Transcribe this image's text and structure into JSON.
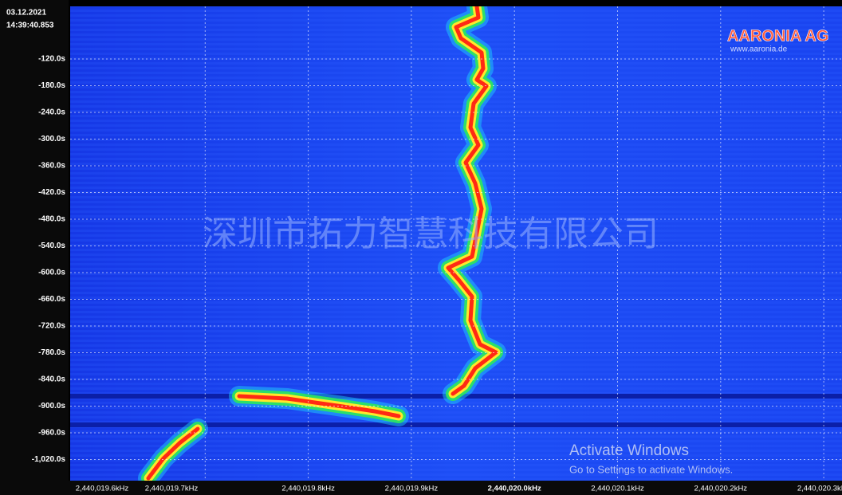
{
  "timestamp": {
    "date": "03.12.2021",
    "time": "14:39:40.853"
  },
  "y_axis": {
    "labels": [
      "-120.0s",
      "-180.0s",
      "-240.0s",
      "-300.0s",
      "-360.0s",
      "-420.0s",
      "-480.0s",
      "-540.0s",
      "-600.0s",
      "-660.0s",
      "-720.0s",
      "-780.0s",
      "-840.0s",
      "-900.0s",
      "-960.0s",
      "-1,020.0s"
    ]
  },
  "x_axis": {
    "labels": [
      "2,440,019.6kHz",
      "2,440,019.7kHz",
      "2,440,019.8kHz",
      "2,440,019.9kHz",
      "2,440,020.0kHz",
      "2,440,020.1kHz",
      "2,440,020.2kHz",
      "2,440,020.3kHz"
    ]
  },
  "watermark": "深圳市拓力智慧科技有限公司",
  "logo": {
    "name": "AARONIA AG",
    "url": "www.aaronia.de"
  },
  "activation": {
    "title": "Activate Windows",
    "subtitle": "Go to Settings to activate Windows."
  }
}
